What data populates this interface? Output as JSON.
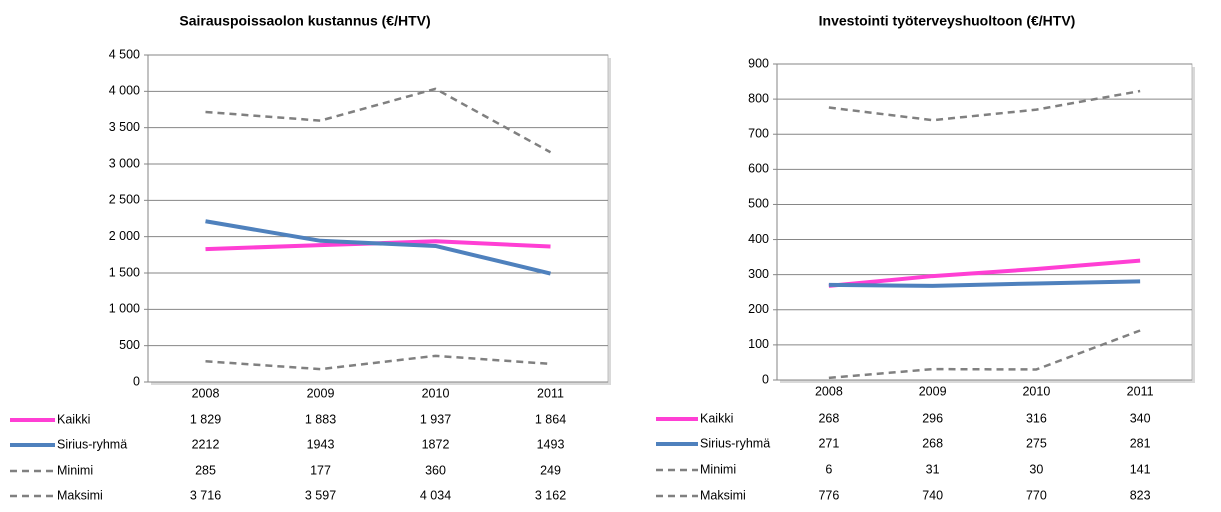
{
  "chart_data": [
    {
      "type": "line",
      "title": "Sairauspoissaolon kustannus (€/HTV)",
      "categories": [
        "2008",
        "2009",
        "2010",
        "2011"
      ],
      "ylim": [
        0,
        4500
      ],
      "yticks": [
        0,
        {
          "value": 500,
          "label": "500"
        },
        {
          "value": 1000,
          "label": "1 000"
        },
        {
          "value": 1500,
          "label": "1 500"
        },
        {
          "value": 2000,
          "label": "2 000"
        },
        {
          "value": 2500,
          "label": "2 500"
        },
        {
          "value": 3000,
          "label": "3 000"
        },
        {
          "value": 3500,
          "label": "3 500"
        },
        {
          "value": 4000,
          "label": "4 000"
        },
        {
          "value": 4500,
          "label": "4 500"
        }
      ],
      "grid": true,
      "series": [
        {
          "name": "Kaikki",
          "color": "#ff3fd4",
          "dashed": false,
          "values": [
            1829,
            1883,
            1937,
            1864
          ],
          "value_labels": [
            "1 829",
            "1 883",
            "1 937",
            "1 864"
          ]
        },
        {
          "name": "Sirius-ryhmä",
          "color": "#4f81bd",
          "dashed": false,
          "values": [
            2212,
            1943,
            1872,
            1493
          ]
        },
        {
          "name": "Minimi",
          "color": "#808080",
          "dashed": true,
          "values": [
            285,
            177,
            360,
            249
          ]
        },
        {
          "name": "Maksimi",
          "color": "#808080",
          "dashed": true,
          "values": [
            3716,
            3597,
            4034,
            3162
          ],
          "value_labels": [
            "3 716",
            "3 597",
            "4 034",
            "3 162"
          ]
        }
      ]
    },
    {
      "type": "line",
      "title": "Investointi työterveyshuoltoon (€/HTV)",
      "categories": [
        "2008",
        "2009",
        "2010",
        "2011"
      ],
      "ylim": [
        0,
        900
      ],
      "yticks": [
        0,
        100,
        200,
        300,
        400,
        500,
        600,
        700,
        800,
        900
      ],
      "grid": true,
      "series": [
        {
          "name": "Kaikki",
          "color": "#ff3fd4",
          "dashed": false,
          "values": [
            268,
            296,
            316,
            340
          ]
        },
        {
          "name": "Sirius-ryhmä",
          "color": "#4f81bd",
          "dashed": false,
          "values": [
            271,
            268,
            275,
            281
          ]
        },
        {
          "name": "Minimi",
          "color": "#808080",
          "dashed": true,
          "values": [
            6,
            31,
            30,
            141
          ]
        },
        {
          "name": "Maksimi",
          "color": "#808080",
          "dashed": true,
          "values": [
            776,
            740,
            770,
            823
          ]
        }
      ]
    }
  ]
}
